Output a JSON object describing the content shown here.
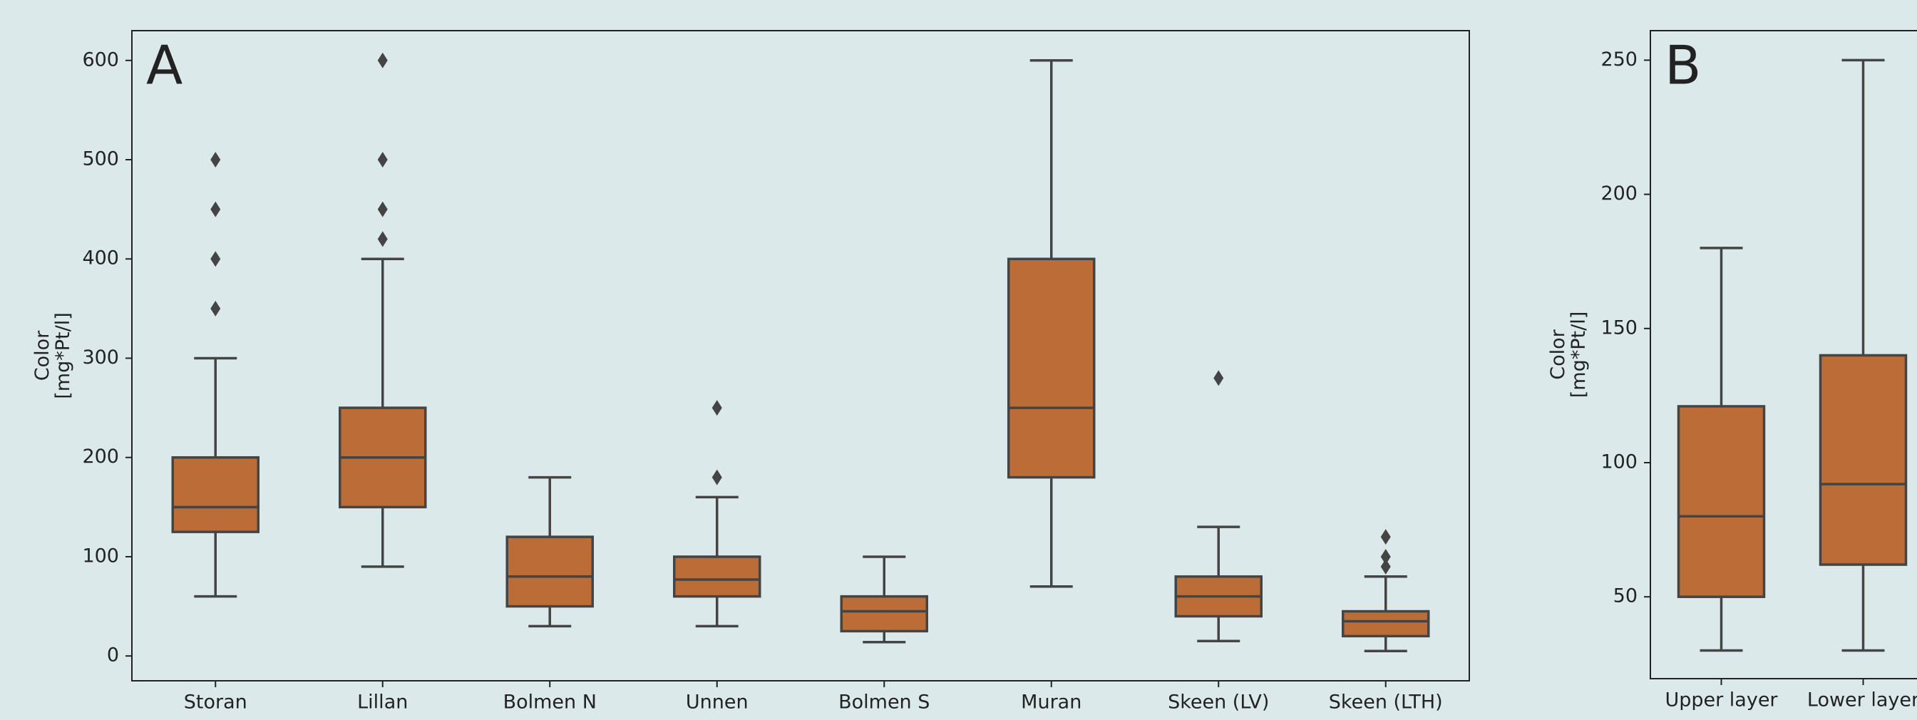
{
  "chart_data": [
    {
      "type": "box",
      "annotation": "A",
      "ylabel_lines": [
        "Color",
        "[mg*Pt/l]"
      ],
      "categories": [
        "Storan",
        "Lillan",
        "Bolmen N",
        "Unnen",
        "Bolmen S",
        "Muran",
        "Skeen (LV)",
        "Skeen (LTH)"
      ],
      "color": "#bc6c36",
      "boxes": [
        {
          "whislo": 60,
          "q1": 125,
          "med": 150,
          "q3": 200,
          "whishi": 300,
          "fliers": [
            350,
            400,
            450,
            500
          ]
        },
        {
          "whislo": 90,
          "q1": 150,
          "med": 200,
          "q3": 250,
          "whishi": 400,
          "fliers": [
            420,
            450,
            500,
            600
          ]
        },
        {
          "whislo": 30,
          "q1": 50,
          "med": 80,
          "q3": 120,
          "whishi": 180,
          "fliers": []
        },
        {
          "whislo": 30,
          "q1": 60,
          "med": 77,
          "q3": 100,
          "whishi": 160,
          "fliers": [
            180,
            250
          ]
        },
        {
          "whislo": 14,
          "q1": 25,
          "med": 45,
          "q3": 60,
          "whishi": 100,
          "fliers": []
        },
        {
          "whislo": 70,
          "q1": 180,
          "med": 250,
          "q3": 400,
          "whishi": 600,
          "fliers": []
        },
        {
          "whislo": 15,
          "q1": 40,
          "med": 60,
          "q3": 80,
          "whishi": 130,
          "fliers": [
            280
          ]
        },
        {
          "whislo": 5,
          "q1": 20,
          "med": 35,
          "q3": 45,
          "whishi": 80,
          "fliers": [
            90,
            100,
            120
          ]
        }
      ],
      "ylim": [
        -25,
        630
      ],
      "yticks": [
        0,
        100,
        200,
        300,
        400,
        500,
        600
      ]
    },
    {
      "type": "box",
      "annotation": "B",
      "ylabel_lines": [
        "Color",
        "[mg*Pt/l]"
      ],
      "categories": [
        "Upper layer",
        "Lower layer"
      ],
      "color": "#bc6c36",
      "boxes": [
        {
          "whislo": 30,
          "q1": 50,
          "med": 80,
          "q3": 121,
          "whishi": 180,
          "fliers": []
        },
        {
          "whislo": 30,
          "q1": 62,
          "med": 92,
          "q3": 140,
          "whishi": 250,
          "fliers": []
        }
      ],
      "ylim": [
        19.5,
        261
      ],
      "yticks": [
        50,
        100,
        150,
        200,
        250
      ]
    }
  ]
}
